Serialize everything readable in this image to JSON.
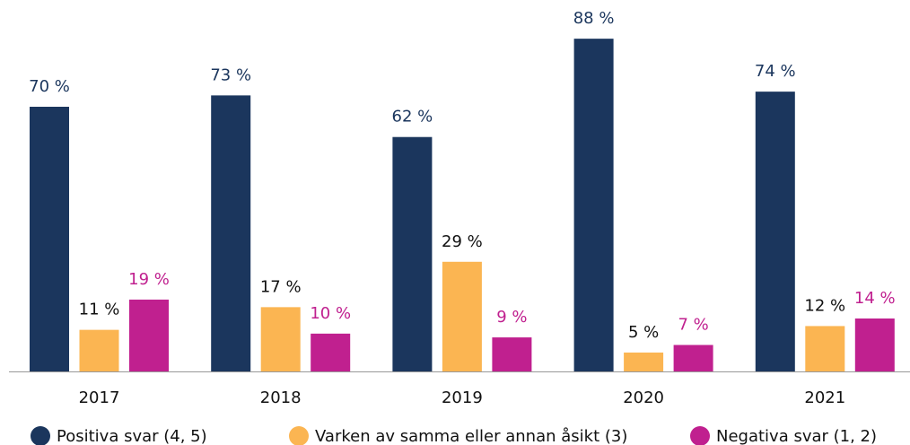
{
  "chart_data": {
    "type": "bar",
    "categories": [
      "2017",
      "2018",
      "2019",
      "2020",
      "2021"
    ],
    "series": [
      {
        "name": "Positiva svar (4, 5)",
        "color": "#1b365d",
        "label_color": "#1b365d",
        "values": [
          70,
          73,
          62,
          88,
          74
        ],
        "value_labels": [
          "70 %",
          "73 %",
          "62 %",
          "88 %",
          "74 %"
        ]
      },
      {
        "name": "Varken av samma eller annan åsikt (3)",
        "color": "#fbb552",
        "label_color": "#111111",
        "values": [
          11,
          17,
          29,
          5,
          12
        ],
        "value_labels": [
          "11 %",
          "17 %",
          "29 %",
          "5 %",
          "12 %"
        ]
      },
      {
        "name": "Negativa svar (1, 2)",
        "color": "#c0208f",
        "label_color": "#c0208f",
        "values": [
          19,
          10,
          9,
          7,
          14
        ],
        "value_labels": [
          "19 %",
          "10 %",
          "9 %",
          "7 %",
          "14 %"
        ]
      }
    ],
    "ylim": [
      0,
      98
    ]
  }
}
